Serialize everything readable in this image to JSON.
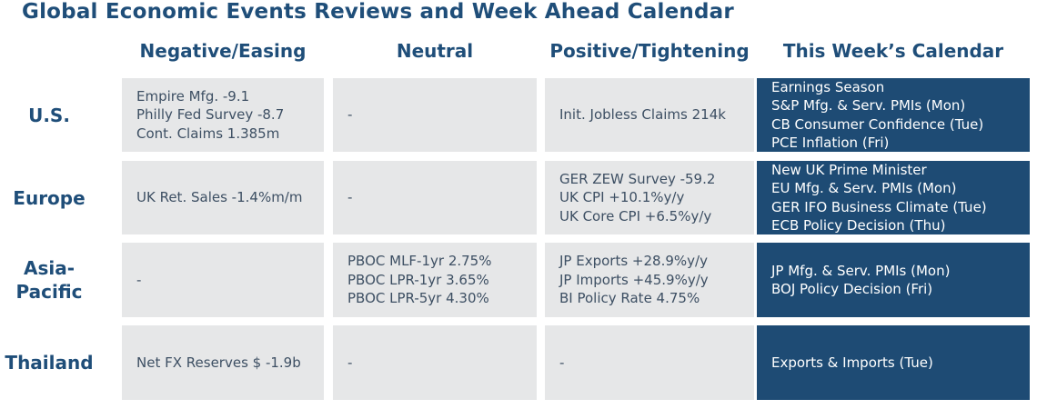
{
  "title": "Global Economic Events Reviews and Week Ahead Calendar",
  "columns": [
    "Negative/Easing",
    "Neutral",
    "Positive/Tightening",
    "This Week’s Calendar"
  ],
  "rows": [
    {
      "label": [
        "U.S."
      ],
      "negative": [
        "Empire Mfg. -9.1",
        "Philly Fed Survey -8.7",
        "Cont. Claims 1.385m"
      ],
      "neutral": [
        "-"
      ],
      "positive": [
        "Init. Jobless Claims 214k"
      ],
      "calendar": [
        "Earnings Season",
        "S&P Mfg. & Serv. PMIs (Mon)",
        "CB Consumer Confidence (Tue)",
        "PCE Inflation (Fri)"
      ]
    },
    {
      "label": [
        "Europe"
      ],
      "negative": [
        "UK Ret. Sales -1.4%m/m"
      ],
      "neutral": [
        "-"
      ],
      "positive": [
        "GER ZEW Survey -59.2",
        "UK CPI +10.1%y/y",
        "UK Core CPI +6.5%y/y"
      ],
      "calendar": [
        "New UK Prime Minister",
        "EU Mfg. & Serv. PMIs (Mon)",
        "GER IFO Business Climate (Tue)",
        "ECB Policy Decision (Thu)"
      ]
    },
    {
      "label": [
        "Asia-",
        "Pacific"
      ],
      "negative": [
        "-"
      ],
      "neutral": [
        "PBOC MLF-1yr 2.75%",
        "PBOC LPR-1yr 3.65%",
        "PBOC LPR-5yr 4.30%"
      ],
      "positive": [
        "JP Exports +28.9%y/y",
        "JP Imports +45.9%y/y",
        "BI Policy Rate 4.75%"
      ],
      "calendar": [
        "JP Mfg. & Serv. PMIs (Mon)",
        "BOJ Policy Decision (Fri)"
      ]
    },
    {
      "label": [
        "Thailand"
      ],
      "negative": [
        "Net FX Reserves $ -1.9b"
      ],
      "neutral": [
        "-"
      ],
      "positive": [
        "-"
      ],
      "calendar": [
        "Exports & Imports (Tue)"
      ]
    }
  ]
}
